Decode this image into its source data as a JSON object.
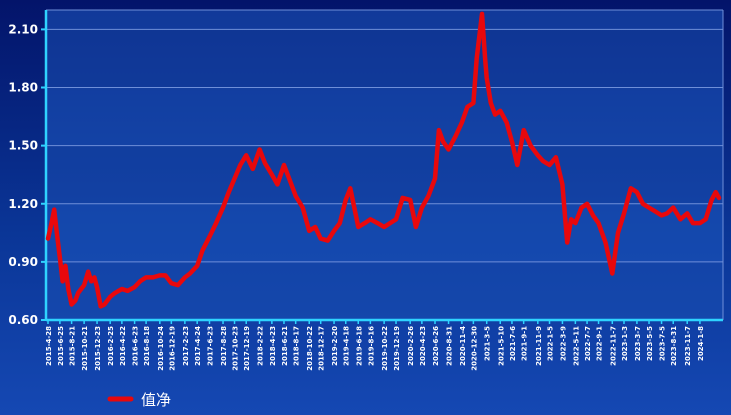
{
  "chart_data": {
    "type": "line",
    "title": "",
    "xlabel": "",
    "ylabel": "",
    "ylim": [
      0.6,
      2.2
    ],
    "y_ticks": [
      0.6,
      0.9,
      1.2,
      1.5,
      1.8,
      2.1
    ],
    "y_tick_labels": [
      "0.60",
      "0.90",
      "1.20",
      "1.50",
      "1.80",
      "2.10"
    ],
    "grid": "horizontal",
    "legend_position": "bottom-left",
    "x_ticks": [
      "2015-4-28",
      "2015-6-25",
      "2015-8-21",
      "2015-10-21",
      "2015-12-23",
      "2016-2-25",
      "2016-4-22",
      "2016-6-23",
      "2016-8-18",
      "2016-10-24",
      "2016-12-19",
      "2017-2-23",
      "2017-4-24",
      "2017-6-23",
      "2017-8-28",
      "2017-10-23",
      "2017-12-19",
      "2018-2-22",
      "2018-4-23",
      "2018-6-21",
      "2018-8-17",
      "2018-10-22",
      "2018-12-17",
      "2019-2-20",
      "2019-4-18",
      "2019-6-18",
      "2019-8-16",
      "2019-10-22",
      "2019-12-19",
      "2020-2-26",
      "2020-4-23",
      "2020-6-26",
      "2020-8-31",
      "2020-11-4",
      "2020-12-30",
      "2021-3-5",
      "2021-5-10",
      "2021-7-6",
      "2021-9-1",
      "2021-11-9",
      "2022-1-5",
      "2022-3-9",
      "2022-5-11",
      "2022-7-7",
      "2022-9-1",
      "2022-11-7",
      "2023-1-3",
      "2023-3-7",
      "2023-5-5",
      "2023-7-5",
      "2023-8-31",
      "2023-11-7",
      "2024-1-8"
    ],
    "series": [
      {
        "name": "值净",
        "color": "#e8080c",
        "points": [
          [
            "2015-4-28",
            1.02
          ],
          [
            "2015-5-15",
            1.1
          ],
          [
            "2015-5-28",
            1.17
          ],
          [
            "2015-6-10",
            1.05
          ],
          [
            "2015-6-25",
            0.92
          ],
          [
            "2015-7-8",
            0.8
          ],
          [
            "2015-7-22",
            0.88
          ],
          [
            "2015-8-5",
            0.76
          ],
          [
            "2015-8-21",
            0.68
          ],
          [
            "2015-9-8",
            0.7
          ],
          [
            "2015-9-22",
            0.74
          ],
          [
            "2015-10-21",
            0.78
          ],
          [
            "2015-11-10",
            0.85
          ],
          [
            "2015-11-25",
            0.8
          ],
          [
            "2015-12-10",
            0.82
          ],
          [
            "2015-12-23",
            0.77
          ],
          [
            "2016-1-10",
            0.67
          ],
          [
            "2016-1-28",
            0.68
          ],
          [
            "2016-2-25",
            0.72
          ],
          [
            "2016-3-20",
            0.74
          ],
          [
            "2016-4-22",
            0.76
          ],
          [
            "2016-5-20",
            0.75
          ],
          [
            "2016-6-23",
            0.77
          ],
          [
            "2016-7-20",
            0.8
          ],
          [
            "2016-8-18",
            0.82
          ],
          [
            "2016-9-20",
            0.82
          ],
          [
            "2016-10-24",
            0.83
          ],
          [
            "2016-11-20",
            0.83
          ],
          [
            "2016-12-19",
            0.79
          ],
          [
            "2017-1-20",
            0.78
          ],
          [
            "2017-2-23",
            0.82
          ],
          [
            "2017-3-20",
            0.84
          ],
          [
            "2017-4-24",
            0.88
          ],
          [
            "2017-5-20",
            0.96
          ],
          [
            "2017-6-23",
            1.03
          ],
          [
            "2017-7-25",
            1.1
          ],
          [
            "2017-8-28",
            1.18
          ],
          [
            "2017-9-25",
            1.26
          ],
          [
            "2017-10-23",
            1.33
          ],
          [
            "2017-11-20",
            1.4
          ],
          [
            "2017-12-19",
            1.45
          ],
          [
            "2018-1-20",
            1.38
          ],
          [
            "2018-2-22",
            1.48
          ],
          [
            "2018-3-20",
            1.41
          ],
          [
            "2018-4-23",
            1.35
          ],
          [
            "2018-5-20",
            1.3
          ],
          [
            "2018-6-21",
            1.4
          ],
          [
            "2018-7-20",
            1.32
          ],
          [
            "2018-8-17",
            1.24
          ],
          [
            "2018-9-20",
            1.18
          ],
          [
            "2018-10-22",
            1.06
          ],
          [
            "2018-11-20",
            1.08
          ],
          [
            "2018-12-17",
            1.02
          ],
          [
            "2019-1-20",
            1.01
          ],
          [
            "2019-2-20",
            1.06
          ],
          [
            "2019-3-20",
            1.1
          ],
          [
            "2019-4-18",
            1.22
          ],
          [
            "2019-5-10",
            1.28
          ],
          [
            "2019-6-18",
            1.08
          ],
          [
            "2019-7-20",
            1.1
          ],
          [
            "2019-8-16",
            1.12
          ],
          [
            "2019-9-20",
            1.1
          ],
          [
            "2019-10-22",
            1.08
          ],
          [
            "2019-11-20",
            1.1
          ],
          [
            "2019-12-19",
            1.12
          ],
          [
            "2020-1-20",
            1.23
          ],
          [
            "2020-2-26",
            1.22
          ],
          [
            "2020-3-25",
            1.08
          ],
          [
            "2020-4-23",
            1.18
          ],
          [
            "2020-5-25",
            1.24
          ],
          [
            "2020-6-26",
            1.33
          ],
          [
            "2020-7-15",
            1.58
          ],
          [
            "2020-8-5",
            1.52
          ],
          [
            "2020-8-31",
            1.48
          ],
          [
            "2020-10-5",
            1.55
          ],
          [
            "2020-11-4",
            1.62
          ],
          [
            "2020-12-1",
            1.7
          ],
          [
            "2020-12-30",
            1.72
          ],
          [
            "2021-1-15",
            1.95
          ],
          [
            "2021-2-10",
            2.18
          ],
          [
            "2021-2-25",
            1.95
          ],
          [
            "2021-3-5",
            1.85
          ],
          [
            "2021-3-25",
            1.72
          ],
          [
            "2021-4-15",
            1.66
          ],
          [
            "2021-5-10",
            1.68
          ],
          [
            "2021-6-10",
            1.62
          ],
          [
            "2021-7-6",
            1.52
          ],
          [
            "2021-8-1",
            1.4
          ],
          [
            "2021-9-1",
            1.58
          ],
          [
            "2021-10-5",
            1.5
          ],
          [
            "2021-11-9",
            1.45
          ],
          [
            "2021-12-5",
            1.42
          ],
          [
            "2022-1-5",
            1.4
          ],
          [
            "2022-2-5",
            1.44
          ],
          [
            "2022-3-9",
            1.3
          ],
          [
            "2022-4-1",
            1.0
          ],
          [
            "2022-4-20",
            1.12
          ],
          [
            "2022-5-11",
            1.1
          ],
          [
            "2022-6-10",
            1.18
          ],
          [
            "2022-7-7",
            1.2
          ],
          [
            "2022-8-5",
            1.14
          ],
          [
            "2022-9-1",
            1.1
          ],
          [
            "2022-10-5",
            1.0
          ],
          [
            "2022-11-7",
            0.84
          ],
          [
            "2022-12-5",
            1.05
          ],
          [
            "2023-1-3",
            1.15
          ],
          [
            "2023-2-5",
            1.28
          ],
          [
            "2023-3-7",
            1.26
          ],
          [
            "2023-4-5",
            1.2
          ],
          [
            "2023-5-5",
            1.18
          ],
          [
            "2023-6-5",
            1.16
          ],
          [
            "2023-7-5",
            1.14
          ],
          [
            "2023-8-1",
            1.15
          ],
          [
            "2023-8-31",
            1.18
          ],
          [
            "2023-10-5",
            1.12
          ],
          [
            "2023-11-7",
            1.15
          ],
          [
            "2023-12-5",
            1.1
          ],
          [
            "2024-1-8",
            1.1
          ],
          [
            "2024-2-5",
            1.12
          ],
          [
            "2024-3-5",
            1.22
          ],
          [
            "2024-3-25",
            1.26
          ],
          [
            "2024-4-10",
            1.23
          ]
        ]
      }
    ]
  }
}
